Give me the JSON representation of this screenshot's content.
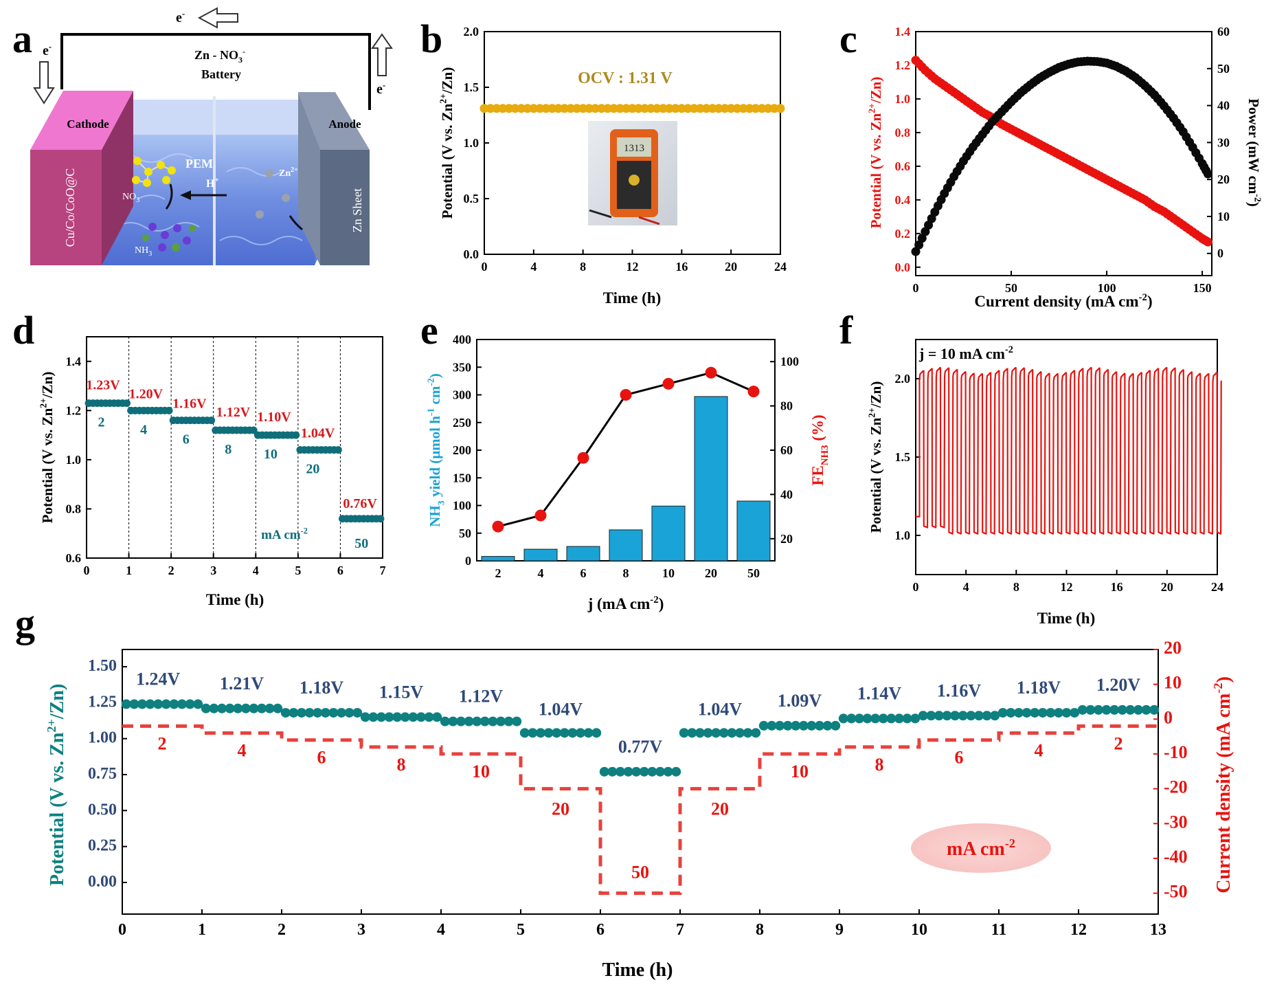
{
  "panel_labels": {
    "a": "a",
    "b": "b",
    "c": "c",
    "d": "d",
    "e": "e",
    "f": "f",
    "g": "g"
  },
  "panel_a": {
    "title_line1": "Zn - NO",
    "title_sub": "3",
    "title_sup": "-",
    "title_line2": "Battery",
    "electron": "e",
    "electron_sup": "-",
    "cathode": "Cathode",
    "anode": "Anode",
    "cathode_material": "Cu/Co/CoO@C",
    "anode_material": "Zn Sheet",
    "membrane": "PEM",
    "proton": "H",
    "proton_sup": "+",
    "zinc_ion": "Zn",
    "zinc_ion_sup": "2+",
    "nitrate": "NO",
    "nitrate_sub": "3",
    "ammonia": "NH",
    "ammonia_sub": "3",
    "colors": {
      "cathode": "#b7437f",
      "cathode_top": "#f077d0",
      "anode": "#5c6b83",
      "anode_top": "#8e9bb2",
      "electrolyte": "#6f8de0"
    }
  },
  "chart_data": [
    {
      "id": "b",
      "type": "line",
      "title": "",
      "annotation": "OCV :   1.31 V",
      "annotation_color": "#b08a1e",
      "photo_caption": "multimeter",
      "meter_reading": "1313",
      "xlabel": "Time (h)",
      "ylabel": "Potential (V vs. Zn2+/Zn)",
      "xlim": [
        0,
        24
      ],
      "ylim": [
        0.0,
        2.0
      ],
      "xticks": [
        "0",
        "4",
        "8",
        "12",
        "16",
        "20",
        "24"
      ],
      "yticks": [
        "0.0",
        "0.5",
        "1.0",
        "1.5",
        "2.0"
      ],
      "series": [
        {
          "name": "OCV",
          "color": "#e8ab0e",
          "x_start": 0,
          "x_end": 24,
          "n_points": 49,
          "value": 1.31
        }
      ]
    },
    {
      "id": "c",
      "type": "scatter",
      "xlabel": "Current density (mA cm-2)",
      "ylabel_left": "Potential (V vs. Zn2+/Zn)",
      "ylabel_right": "Power (mW cm-2)",
      "xlim": [
        0,
        155
      ],
      "ylim_left": [
        -0.05,
        1.4
      ],
      "ylim_right": [
        -6,
        60
      ],
      "xticks": [
        "0",
        "50",
        "100",
        "150"
      ],
      "yticks_left": [
        "0.0",
        "0.2",
        "0.4",
        "0.6",
        "0.8",
        "1.0",
        "1.2",
        "1.4"
      ],
      "yticks_right": [
        "0",
        "10",
        "20",
        "30",
        "40",
        "50",
        "60"
      ],
      "series": [
        {
          "name": "Potential",
          "axis": "left",
          "color": "#e8130f",
          "x": [
            0,
            5,
            10,
            15,
            20,
            25,
            30,
            35,
            40,
            45,
            50,
            55,
            60,
            65,
            70,
            75,
            80,
            85,
            90,
            95,
            100,
            105,
            110,
            115,
            120,
            125,
            130,
            135,
            140,
            145,
            150,
            153
          ],
          "y": [
            1.23,
            1.17,
            1.12,
            1.08,
            1.04,
            1.0,
            0.96,
            0.92,
            0.89,
            0.85,
            0.82,
            0.79,
            0.76,
            0.73,
            0.7,
            0.67,
            0.64,
            0.61,
            0.58,
            0.55,
            0.52,
            0.49,
            0.46,
            0.43,
            0.4,
            0.36,
            0.33,
            0.29,
            0.25,
            0.21,
            0.17,
            0.15
          ]
        },
        {
          "name": "Power",
          "axis": "right",
          "color": "#0a0a0a",
          "x": [
            0,
            5,
            10,
            15,
            20,
            25,
            30,
            35,
            40,
            45,
            50,
            55,
            60,
            65,
            70,
            75,
            80,
            85,
            90,
            95,
            100,
            105,
            110,
            115,
            120,
            125,
            130,
            135,
            140,
            145,
            150,
            153
          ],
          "y": [
            0.5,
            5.9,
            11.2,
            16.2,
            20.8,
            25.0,
            28.8,
            32.2,
            35.6,
            38.3,
            41.0,
            43.5,
            45.6,
            47.5,
            49.0,
            50.3,
            51.2,
            51.8,
            52.0,
            51.9,
            51.5,
            50.6,
            49.3,
            47.6,
            45.4,
            42.9,
            39.9,
            36.6,
            32.9,
            28.7,
            24.3,
            21.5
          ]
        }
      ]
    },
    {
      "id": "d",
      "type": "scatter",
      "xlabel": "Time (h)",
      "ylabel": "Potential (V vs. Zn2+/Zn)",
      "xlim": [
        0,
        7
      ],
      "ylim": [
        0.6,
        1.5
      ],
      "xticks": [
        "0",
        "1",
        "2",
        "3",
        "4",
        "5",
        "6",
        "7"
      ],
      "yticks": [
        "0.6",
        "0.8",
        "1.0",
        "1.2",
        "1.4"
      ],
      "unit_note": "mA cm-2",
      "steps": [
        {
          "current": "2",
          "voltage": 1.23,
          "label": "1.23V"
        },
        {
          "current": "4",
          "voltage": 1.2,
          "label": "1.20V"
        },
        {
          "current": "6",
          "voltage": 1.16,
          "label": "1.16V"
        },
        {
          "current": "8",
          "voltage": 1.12,
          "label": "1.12V"
        },
        {
          "current": "10",
          "voltage": 1.1,
          "label": "1.10V"
        },
        {
          "current": "20",
          "voltage": 1.04,
          "label": "1.04V"
        },
        {
          "current": "50",
          "voltage": 0.76,
          "label": "0.76V"
        }
      ],
      "colors": {
        "dots": "#0f6e7a",
        "labels": "#d7191c"
      }
    },
    {
      "id": "e",
      "type": "bar",
      "categories": [
        "2",
        "4",
        "6",
        "8",
        "10",
        "20",
        "50"
      ],
      "xlabel": "j (mA cm-2)",
      "ylabel_left": "NH3 yield (μmol h-1 cm-2)",
      "ylabel_right": "FE_NH3 (%)",
      "ylim_left": [
        0,
        400
      ],
      "ylim_right": [
        10,
        110
      ],
      "yticks_left": [
        "0",
        "50",
        "100",
        "150",
        "200",
        "250",
        "300",
        "350",
        "400"
      ],
      "yticks_right": [
        "20",
        "40",
        "60",
        "80",
        "100"
      ],
      "series": [
        {
          "name": "NH3 yield",
          "type": "bar",
          "color": "#1aa3d6",
          "values": [
            8,
            21,
            26,
            56,
            99,
            297,
            108
          ]
        },
        {
          "name": "FE_NH3",
          "type": "line",
          "color": "#e8130f",
          "values": [
            25.5,
            30.5,
            56.5,
            85,
            90,
            95,
            86.5
          ]
        }
      ]
    },
    {
      "id": "f",
      "type": "line",
      "annotation": "j = 10 mA cm-2",
      "xlabel": "Time (h)",
      "ylabel": "Potential (V vs. Zn2+/Zn)",
      "xlim": [
        0,
        24
      ],
      "ylim": [
        0.75,
        2.25
      ],
      "xticks": [
        "0",
        "4",
        "8",
        "12",
        "16",
        "20",
        "24"
      ],
      "yticks": [
        "1.0",
        "1.5",
        "2.0"
      ],
      "cycle_hours": 0.667,
      "charge_V": 2.05,
      "discharge_V": 1.02,
      "color": "#e8130f"
    },
    {
      "id": "g",
      "type": "scatter",
      "xlabel": "Time (h)",
      "ylabel_left": "Potential (V vs. Zn2+/Zn)",
      "ylabel_right": "Current density (mA cm-2)",
      "xlim": [
        0,
        13
      ],
      "ylim_left": [
        -0.22,
        1.62
      ],
      "ylim_right": [
        -56,
        20
      ],
      "xticks": [
        "0",
        "1",
        "2",
        "3",
        "4",
        "5",
        "6",
        "7",
        "8",
        "9",
        "10",
        "11",
        "12",
        "13"
      ],
      "yticks_left": [
        "0.00",
        "0.25",
        "0.50",
        "0.75",
        "1.00",
        "1.25",
        "1.50"
      ],
      "yticks_right": [
        "-50",
        "-40",
        "-30",
        "-20",
        "-10",
        "0",
        "10",
        "20"
      ],
      "unit_note": "mA cm-2",
      "steps": [
        {
          "voltage": 1.24,
          "label": "1.24V",
          "current": -2,
          "current_label": "2"
        },
        {
          "voltage": 1.21,
          "label": "1.21V",
          "current": -4,
          "current_label": "4"
        },
        {
          "voltage": 1.18,
          "label": "1.18V",
          "current": -6,
          "current_label": "6"
        },
        {
          "voltage": 1.15,
          "label": "1.15V",
          "current": -8,
          "current_label": "8"
        },
        {
          "voltage": 1.12,
          "label": "1.12V",
          "current": -10,
          "current_label": "10"
        },
        {
          "voltage": 1.04,
          "label": "1.04V",
          "current": -20,
          "current_label": "20"
        },
        {
          "voltage": 0.77,
          "label": "0.77V",
          "current": -50,
          "current_label": "50"
        },
        {
          "voltage": 1.04,
          "label": "1.04V",
          "current": -20,
          "current_label": "20"
        },
        {
          "voltage": 1.09,
          "label": "1.09V",
          "current": -10,
          "current_label": "10"
        },
        {
          "voltage": 1.14,
          "label": "1.14V",
          "current": -8,
          "current_label": "8"
        },
        {
          "voltage": 1.16,
          "label": "1.16V",
          "current": -6,
          "current_label": "6"
        },
        {
          "voltage": 1.18,
          "label": "1.18V",
          "current": -4,
          "current_label": "4"
        },
        {
          "voltage": 1.2,
          "label": "1.20V",
          "current": -2,
          "current_label": "2"
        }
      ],
      "colors": {
        "dots": "#0f8080",
        "voltage_labels": "#2f4a78",
        "current": "#e8413c",
        "left_axis": "#0f8080",
        "right_axis": "#e8130f"
      }
    }
  ]
}
